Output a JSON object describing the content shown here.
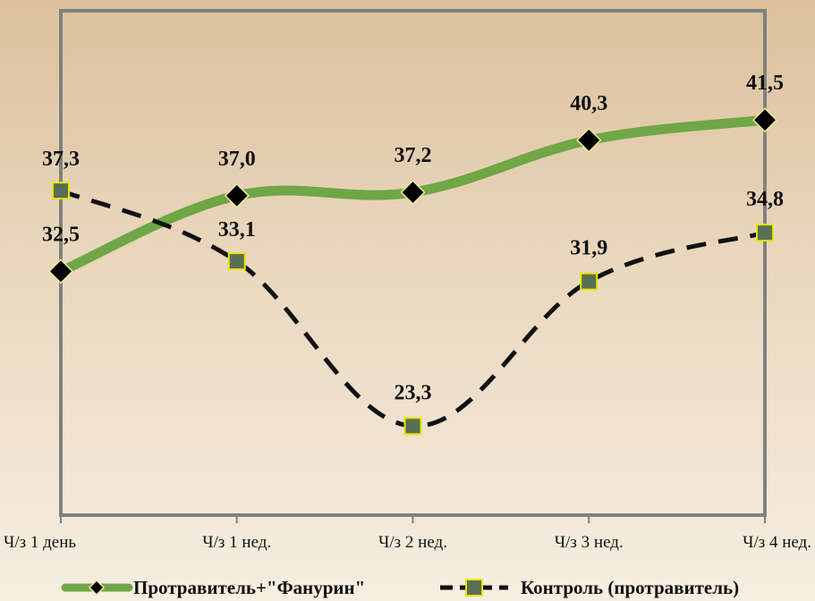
{
  "chart_data": {
    "type": "line",
    "categories": [
      "Ч/з 1 день",
      "Ч/з 1 нед.",
      "Ч/з 2 нед.",
      "Ч/з 3 нед.",
      "Ч/з 4 нед."
    ],
    "series": [
      {
        "name": "Протравитель+\"Фанурин\"",
        "values": [
          32.5,
          37.0,
          37.2,
          40.3,
          41.5
        ],
        "labels": [
          "32,5",
          "37,0",
          "37,2",
          "40,3",
          "41,5"
        ],
        "color": "#6fa646",
        "marker": "diamond",
        "line_style": "solid"
      },
      {
        "name": "Контроль (протравитель)",
        "values": [
          37.3,
          33.1,
          23.3,
          31.9,
          34.8
        ],
        "labels": [
          "37,3",
          "33,1",
          "23,3",
          "31,9",
          "34,8"
        ],
        "color": "#111111",
        "marker": "square",
        "line_style": "dashed"
      }
    ],
    "ylim": [
      18,
      48
    ],
    "grid": false,
    "legend_position": "bottom",
    "colors": {
      "plot_border": "#808080",
      "marker_square_fill": "#5a6d55",
      "marker_square_edge": "#e6e600",
      "marker_diamond_fill": "#000000",
      "marker_diamond_edge": "#f3eb9e"
    }
  }
}
